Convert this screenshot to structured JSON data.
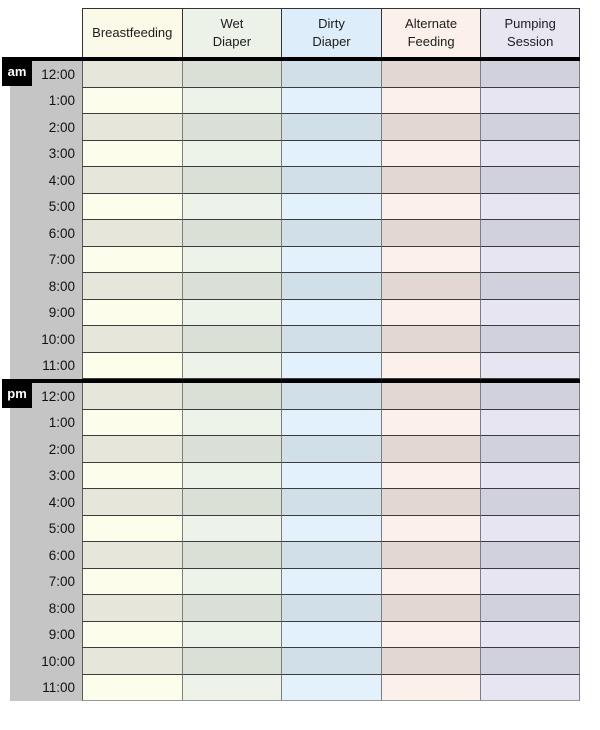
{
  "columns": [
    {
      "id": "breastfeeding",
      "label": "Breastfeeding",
      "header_bg": "#fbfae8",
      "row_dark_bg": "#e7e6da",
      "row_light_bg": "#fdfdeb"
    },
    {
      "id": "wet-diaper",
      "label": "Wet\nDiaper",
      "header_bg": "#edf2e9",
      "row_dark_bg": "#dae0d5",
      "row_light_bg": "#eef3e9"
    },
    {
      "id": "dirty-diaper",
      "label": "Dirty\nDiaper",
      "header_bg": "#ddedf9",
      "row_dark_bg": "#d1dfe9",
      "row_light_bg": "#e3f1fc"
    },
    {
      "id": "alternate-feeding",
      "label": "Alternate\nFeeding",
      "header_bg": "#fcf0eb",
      "row_dark_bg": "#e2d8d1",
      "row_light_bg": "#fcf0ea"
    },
    {
      "id": "pumping-session",
      "label": "Pumping\nSession",
      "header_bg": "#e8e7f1",
      "row_dark_bg": "#d1d0dd",
      "row_light_bg": "#e7e5f1"
    }
  ],
  "sections": [
    {
      "meridiem": "am",
      "divider_before": false,
      "times": [
        "12:00",
        "1:00",
        "2:00",
        "3:00",
        "4:00",
        "5:00",
        "6:00",
        "7:00",
        "8:00",
        "9:00",
        "10:00",
        "11:00"
      ]
    },
    {
      "meridiem": "pm",
      "divider_before": true,
      "times": [
        "12:00",
        "1:00",
        "2:00",
        "3:00",
        "4:00",
        "5:00",
        "6:00",
        "7:00",
        "8:00",
        "9:00",
        "10:00",
        "11:00"
      ]
    }
  ],
  "colors": {
    "gutter": "#c5c5c5",
    "badge_bg": "#000000",
    "badge_fg": "#ffffff",
    "divider": "#000000",
    "row_border": "#3c3c3c",
    "column_border": "#7e7e7e"
  }
}
